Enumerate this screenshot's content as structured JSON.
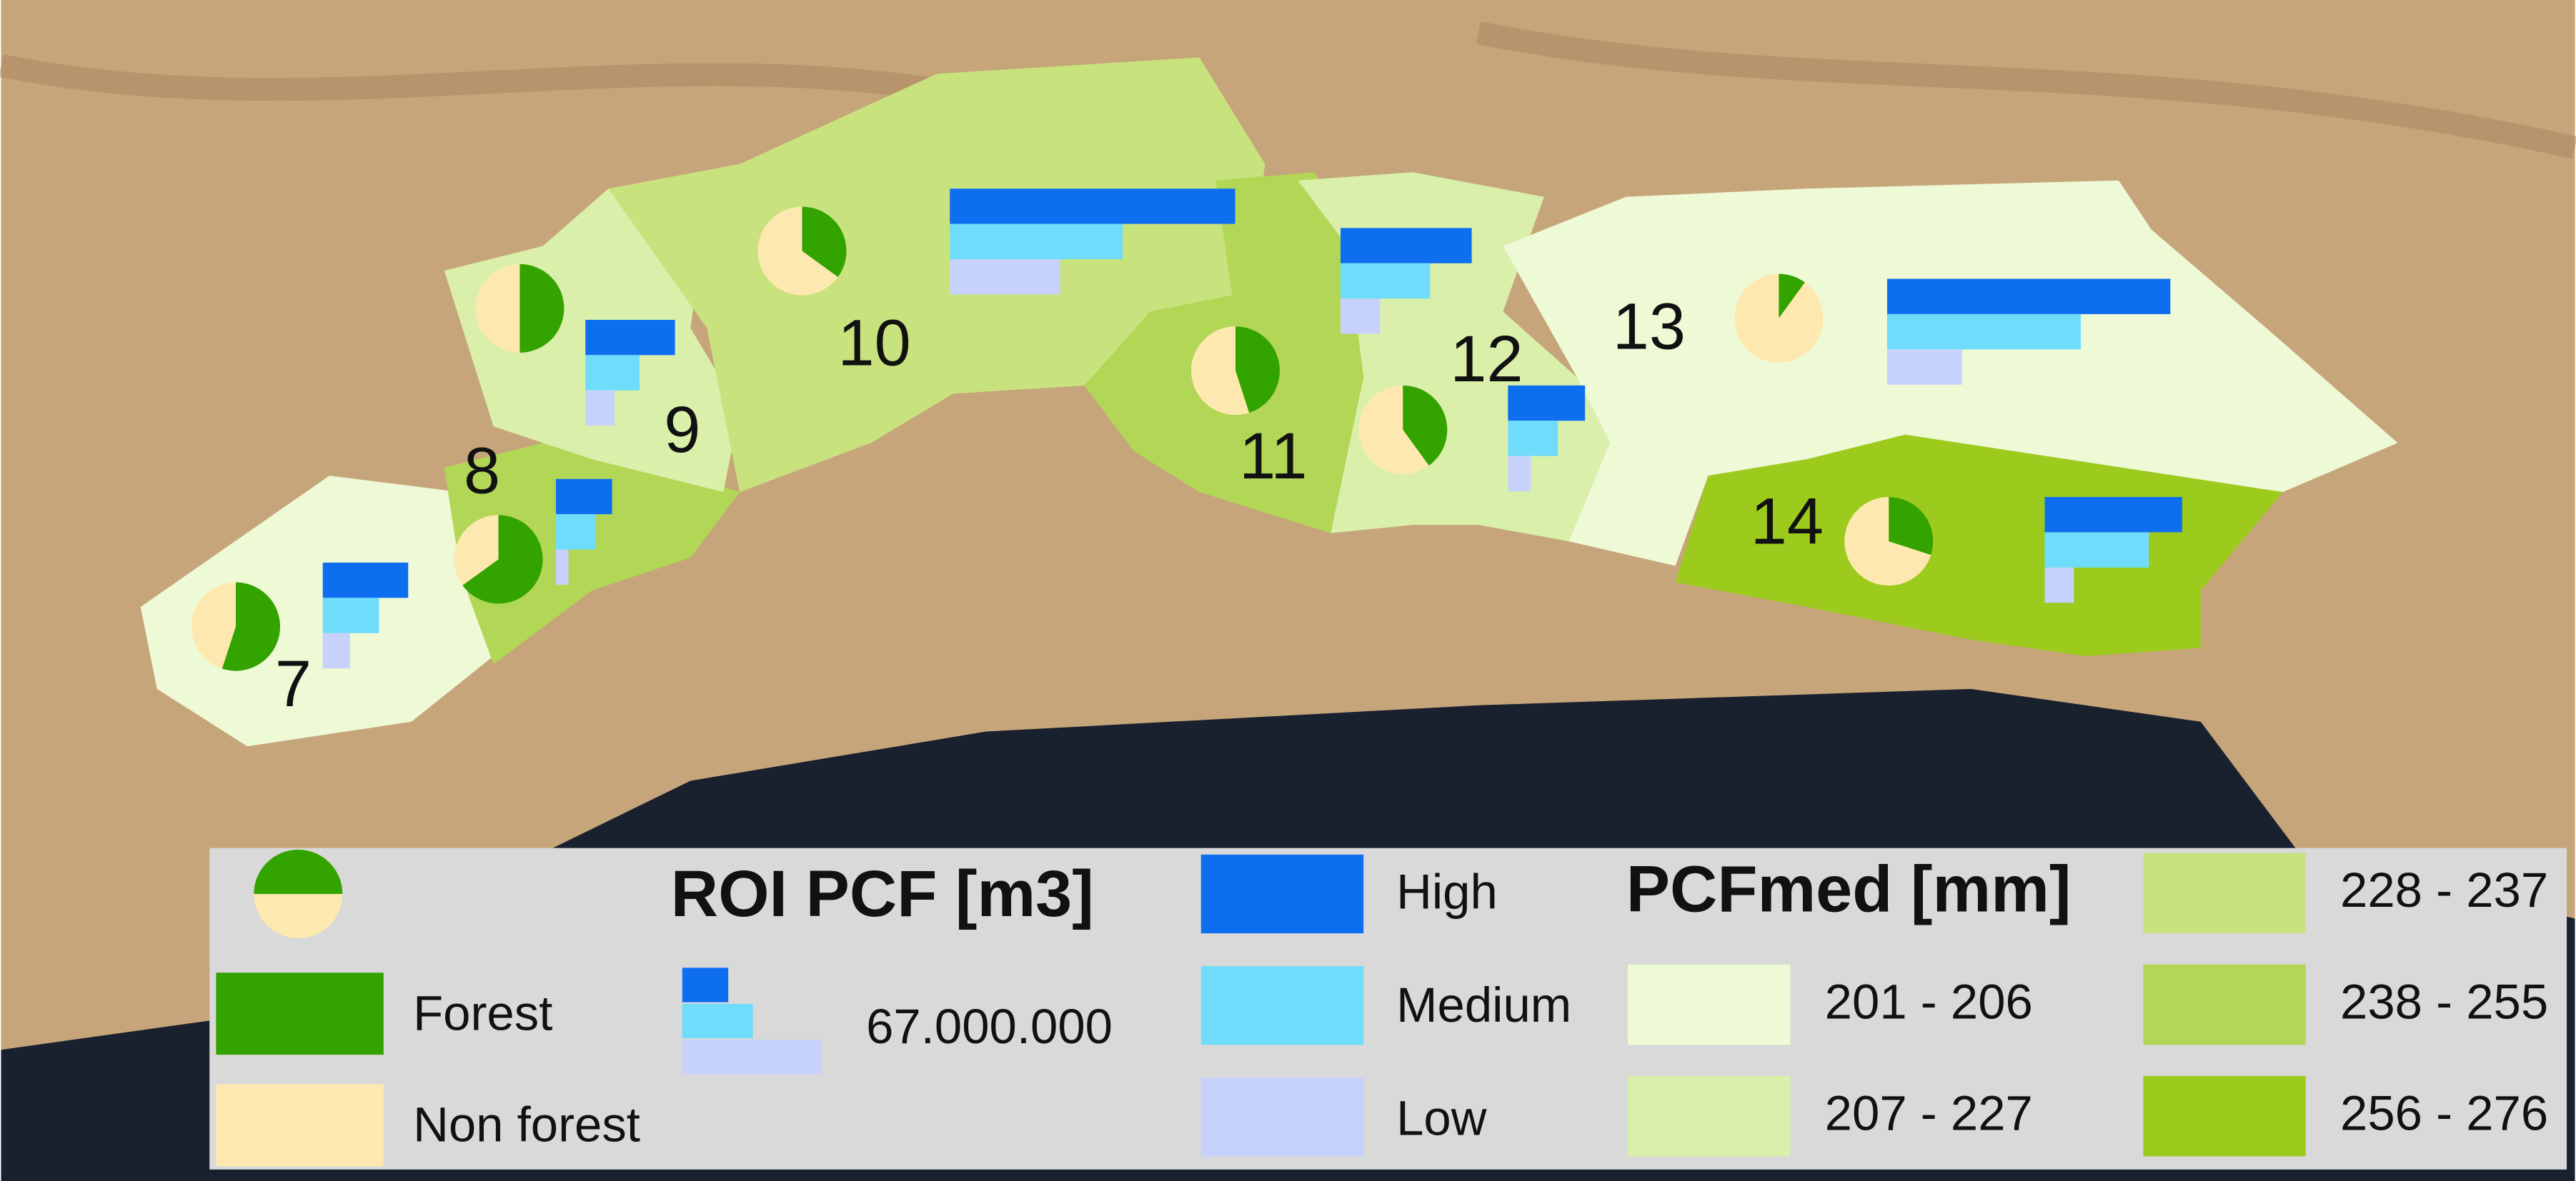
{
  "regions": [
    {
      "label": "7",
      "color": "#eef9d5",
      "forest_share": 55,
      "pcf": [
        41000000,
        27000000,
        13000000
      ]
    },
    {
      "label": "8",
      "color": "#b2d655",
      "forest_share": 65,
      "pcf": [
        27000000,
        19000000,
        6000000
      ]
    },
    {
      "label": "9",
      "color": "#d9efaa",
      "forest_share": 50,
      "pcf": [
        43000000,
        26000000,
        14000000
      ]
    },
    {
      "label": "10",
      "color": "#c8e27e",
      "forest_share": 35,
      "pcf": [
        137000000,
        83000000,
        53000000
      ]
    },
    {
      "label": "11",
      "color": "#b2d655",
      "forest_share": 45,
      "pcf": [
        63000000,
        43000000,
        19000000
      ]
    },
    {
      "label": "12",
      "color": "#d9efaa",
      "forest_share": 40,
      "pcf": [
        37000000,
        24000000,
        11000000
      ]
    },
    {
      "label": "13",
      "color": "#eef9d5",
      "forest_share": 10,
      "pcf": [
        136000000,
        93000000,
        36000000
      ]
    },
    {
      "label": "14",
      "color": "#9ccb1e",
      "forest_share": 30,
      "pcf": [
        66000000,
        50000000,
        14000000
      ]
    }
  ],
  "legend": {
    "title": "ROI PCF [m3]",
    "forest": {
      "name": "Forest",
      "color": "#33a300"
    },
    "non_forest": {
      "name": "Non forest",
      "color": "#fde9b0"
    },
    "scale": {
      "value": 67000000,
      "label": "67.000.000"
    },
    "pcf_classes": [
      {
        "name": "High",
        "color": "#0d6ff0"
      },
      {
        "name": "Medium",
        "color": "#6fdcfb"
      },
      {
        "name": "Low",
        "color": "#c6d2fb"
      }
    ],
    "pcfmed_title": "PCFmed [mm]",
    "pcfmed_classes": [
      {
        "label": "201 - 206",
        "color": "#eef9d5"
      },
      {
        "label": "207 - 227",
        "color": "#d9efaa"
      },
      {
        "label": "228 - 237",
        "color": "#c8e27e"
      },
      {
        "label": "238 - 255",
        "color": "#b2d655"
      },
      {
        "label": "256 - 276",
        "color": "#9ccb1e"
      }
    ]
  }
}
